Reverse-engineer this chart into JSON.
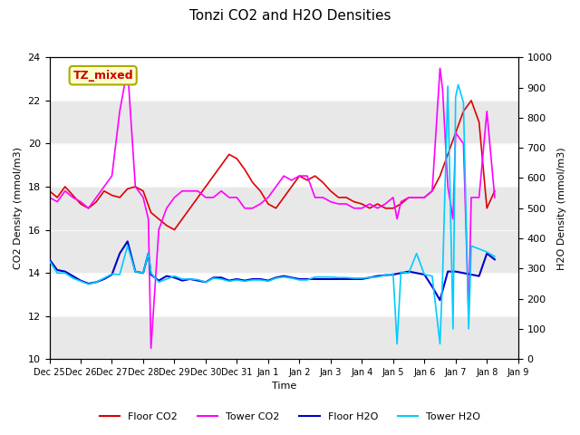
{
  "title": "Tonzi CO2 and H2O Densities",
  "xlabel": "Time",
  "ylabel_left": "CO2 Density (mmol/m3)",
  "ylabel_right": "H2O Density (mmol/m3)",
  "ylim_left": [
    10,
    24
  ],
  "ylim_right": [
    0,
    1000
  ],
  "annotation_text": "TZ_mixed",
  "annotation_color": "#cc0000",
  "annotation_bg": "#ffffcc",
  "annotation_border": "#aaaa00",
  "legend_entries": [
    "Floor CO2",
    "Tower CO2",
    "Floor H2O",
    "Tower H2O"
  ],
  "line_colors": [
    "#dd0000",
    "#ff00ff",
    "#0000cc",
    "#00ccff"
  ],
  "bg_bands": [
    {
      "ymin": 10,
      "ymax": 12,
      "color": "#e8e8e8"
    },
    {
      "ymin": 14,
      "ymax": 18,
      "color": "#e8e8e8"
    },
    {
      "ymin": 20,
      "ymax": 22,
      "color": "#e8e8e8"
    }
  ],
  "start_date": "2000-12-25",
  "floor_co2": {
    "times_offset_hours": [
      0,
      6,
      12,
      18,
      24,
      30,
      36,
      42,
      48,
      54,
      60,
      66,
      72,
      78,
      84,
      90,
      96,
      102,
      108,
      114,
      120,
      126,
      132,
      138,
      144,
      150,
      156,
      162,
      168,
      174,
      180,
      186,
      192,
      198,
      204,
      210,
      216,
      222,
      228,
      234,
      240,
      246,
      252,
      258,
      264,
      270,
      276,
      282,
      288,
      294,
      300,
      306,
      312,
      318,
      324,
      330,
      336,
      342
    ],
    "values": [
      17.8,
      17.5,
      18.0,
      17.6,
      17.2,
      17.0,
      17.3,
      17.8,
      17.6,
      17.5,
      17.9,
      18.0,
      17.8,
      16.8,
      16.5,
      16.2,
      16.0,
      16.5,
      17.0,
      17.5,
      18.0,
      18.5,
      19.0,
      19.5,
      19.3,
      18.8,
      18.2,
      17.8,
      17.2,
      17.0,
      17.5,
      18.0,
      18.5,
      18.3,
      18.5,
      18.2,
      17.8,
      17.5,
      17.5,
      17.3,
      17.2,
      17.0,
      17.2,
      17.0,
      17.0,
      17.2,
      17.5,
      17.5,
      17.5,
      17.8,
      18.5,
      19.5,
      20.5,
      21.5,
      22.0,
      21.0,
      17.0,
      17.8
    ]
  },
  "tower_co2": {
    "times_offset_hours": [
      0,
      6,
      12,
      18,
      24,
      30,
      36,
      42,
      48,
      54,
      60,
      66,
      72,
      76,
      78,
      84,
      90,
      96,
      102,
      108,
      114,
      120,
      126,
      132,
      138,
      144,
      150,
      156,
      162,
      168,
      174,
      180,
      186,
      192,
      198,
      204,
      210,
      216,
      222,
      228,
      234,
      240,
      246,
      252,
      258,
      264,
      267,
      270,
      276,
      282,
      288,
      294,
      300,
      302,
      306,
      310,
      312,
      318,
      322,
      324,
      330,
      336,
      342
    ],
    "values": [
      17.5,
      17.3,
      17.8,
      17.5,
      17.3,
      17.0,
      17.5,
      18.0,
      18.5,
      21.5,
      23.5,
      18.0,
      17.5,
      16.5,
      10.5,
      16.0,
      17.0,
      17.5,
      17.8,
      17.8,
      17.8,
      17.5,
      17.5,
      17.8,
      17.5,
      17.5,
      17.0,
      17.0,
      17.2,
      17.5,
      18.0,
      18.5,
      18.3,
      18.5,
      18.5,
      17.5,
      17.5,
      17.3,
      17.2,
      17.2,
      17.0,
      17.0,
      17.2,
      17.0,
      17.2,
      17.5,
      16.5,
      17.3,
      17.5,
      17.5,
      17.5,
      17.8,
      23.5,
      22.5,
      18.0,
      16.5,
      20.5,
      20.0,
      12.0,
      17.5,
      17.5,
      21.5,
      17.5
    ]
  },
  "floor_h2o": {
    "times_offset_hours": [
      0,
      6,
      12,
      18,
      24,
      30,
      36,
      42,
      48,
      54,
      60,
      66,
      72,
      76,
      78,
      84,
      90,
      96,
      102,
      108,
      114,
      120,
      126,
      132,
      138,
      144,
      150,
      156,
      162,
      168,
      174,
      180,
      186,
      192,
      198,
      204,
      210,
      216,
      222,
      228,
      234,
      240,
      246,
      252,
      258,
      264,
      270,
      276,
      282,
      288,
      294,
      300,
      306,
      312,
      318,
      324,
      330,
      336,
      342
    ],
    "values": [
      330,
      295,
      290,
      275,
      260,
      250,
      255,
      265,
      280,
      350,
      390,
      290,
      285,
      350,
      280,
      260,
      275,
      270,
      260,
      265,
      260,
      255,
      270,
      270,
      260,
      265,
      260,
      265,
      265,
      260,
      270,
      275,
      270,
      265,
      265,
      265,
      265,
      265,
      265,
      265,
      265,
      265,
      270,
      275,
      278,
      280,
      285,
      290,
      285,
      280,
      240,
      195,
      290,
      290,
      285,
      280,
      275,
      350,
      330
    ]
  },
  "tower_h2o": {
    "times_offset_hours": [
      0,
      6,
      12,
      18,
      24,
      30,
      36,
      42,
      48,
      54,
      60,
      66,
      72,
      76,
      78,
      84,
      90,
      96,
      102,
      108,
      114,
      120,
      126,
      132,
      138,
      144,
      150,
      156,
      162,
      168,
      174,
      180,
      186,
      192,
      198,
      204,
      210,
      216,
      222,
      228,
      234,
      240,
      246,
      252,
      258,
      264,
      267,
      270,
      276,
      282,
      288,
      294,
      300,
      302,
      306,
      310,
      312,
      314,
      318,
      322,
      324,
      330,
      336,
      342
    ],
    "values": [
      325,
      285,
      285,
      268,
      258,
      248,
      255,
      268,
      282,
      280,
      375,
      290,
      285,
      350,
      285,
      255,
      265,
      275,
      265,
      265,
      263,
      255,
      268,
      265,
      258,
      262,
      258,
      262,
      262,
      258,
      268,
      272,
      268,
      262,
      262,
      272,
      272,
      272,
      270,
      270,
      268,
      268,
      270,
      272,
      278,
      282,
      50,
      288,
      285,
      350,
      280,
      275,
      50,
      275,
      905,
      100,
      870,
      910,
      850,
      100,
      375,
      365,
      355,
      340
    ]
  }
}
